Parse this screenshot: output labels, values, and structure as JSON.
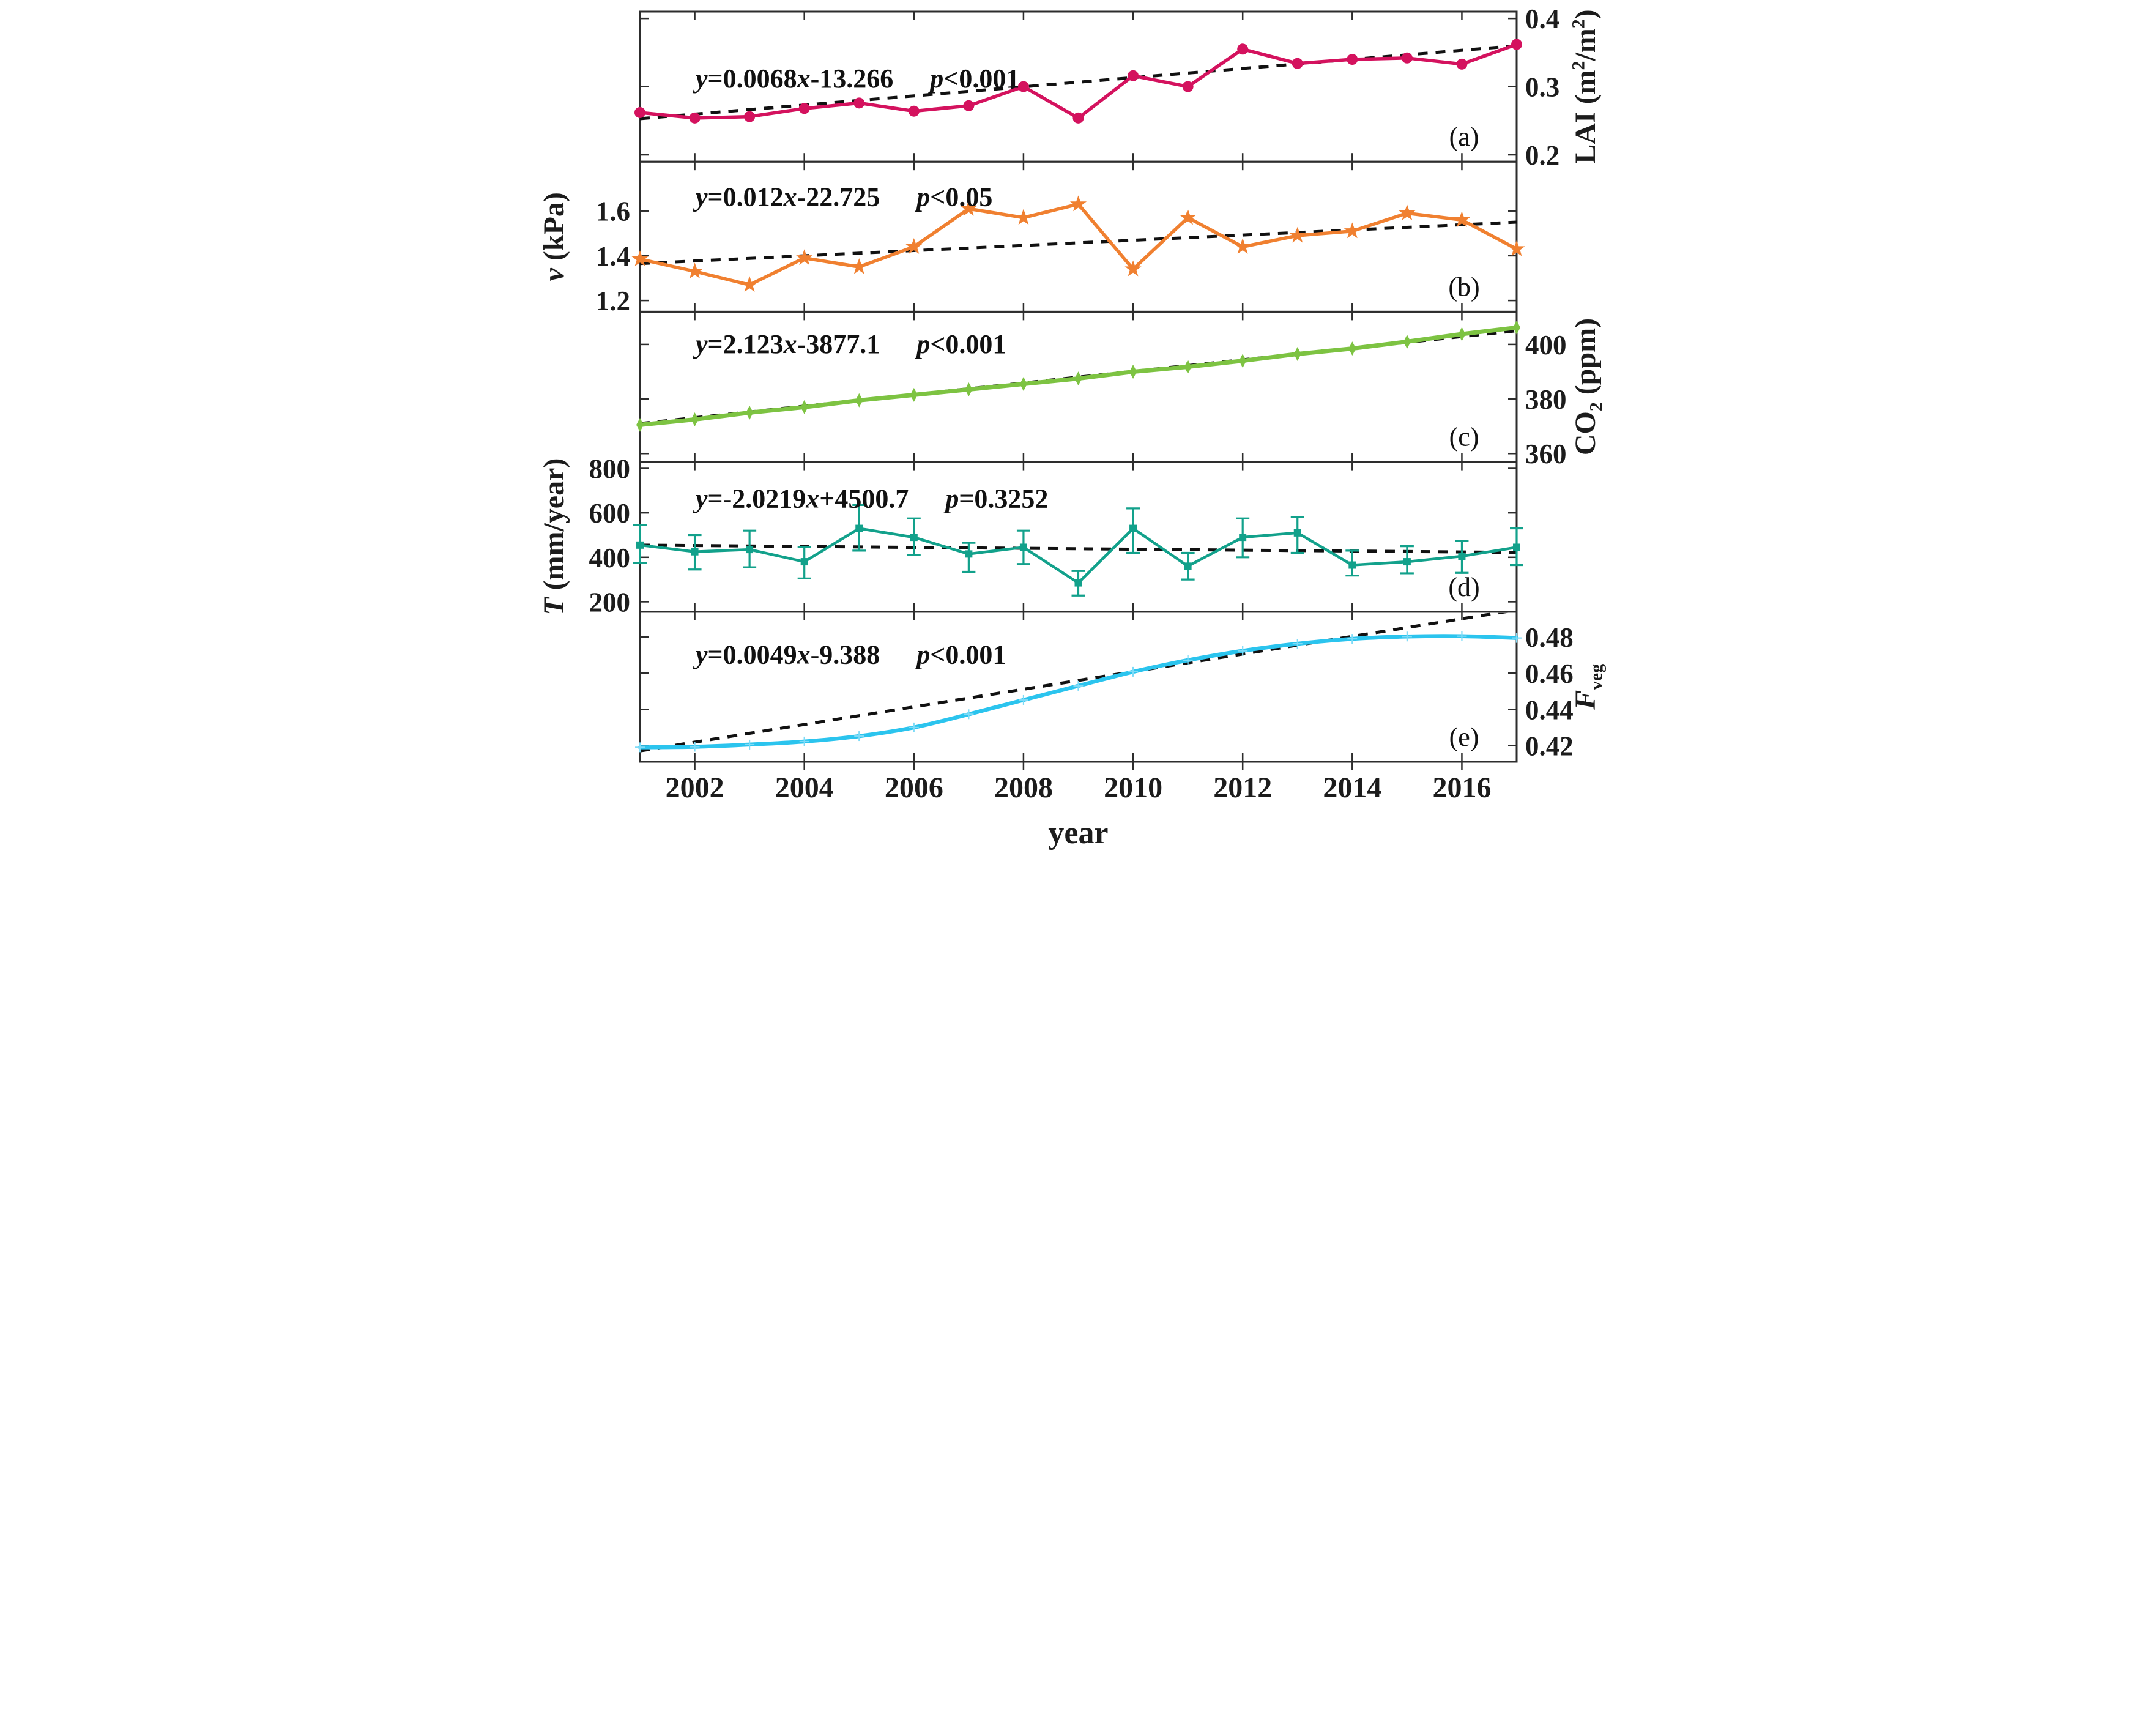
{
  "figure": {
    "years": [
      2001,
      2002,
      2003,
      2004,
      2005,
      2006,
      2007,
      2008,
      2009,
      2010,
      2011,
      2012,
      2013,
      2014,
      2015,
      2016,
      2017
    ],
    "x_range": [
      2001,
      2017
    ],
    "x_axis": {
      "title": "year",
      "tick_years": [
        2002,
        2004,
        2006,
        2008,
        2010,
        2012,
        2014,
        2016
      ],
      "tick_labels": [
        "2002",
        "2004",
        "2006",
        "2008",
        "2010",
        "2012",
        "2014",
        "2016"
      ]
    },
    "styles": {
      "trend_color": "#111111",
      "frame_color": "#2d2d2d",
      "text_color": "#1c1c1c",
      "background": "#ffffff"
    }
  },
  "chart_data": [
    {
      "id": "a",
      "type": "line",
      "panel_label": "(a)",
      "marker": "circle",
      "color": "#d4125e",
      "axis_side": "right",
      "axis_label_parts": [
        {
          "t": "LAI (m"
        },
        {
          "t": "2",
          "sup": true
        },
        {
          "t": "/m"
        },
        {
          "t": "2",
          "sup": true
        },
        {
          "t": ")"
        }
      ],
      "ylim": [
        0.19,
        0.41
      ],
      "yticks": [
        0.2,
        0.3,
        0.4
      ],
      "ytick_labels": [
        "0.2",
        "0.3",
        "0.4"
      ],
      "values": [
        0.262,
        0.254,
        0.256,
        0.268,
        0.276,
        0.264,
        0.272,
        0.3,
        0.254,
        0.316,
        0.3,
        0.355,
        0.334,
        0.34,
        0.342,
        0.333,
        0.362
      ],
      "trend": {
        "start": 0.253,
        "end": 0.36,
        "style": "dashed"
      },
      "equation_parts": [
        {
          "t": "y",
          "i": true
        },
        {
          "t": "=0.0068"
        },
        {
          "t": "x",
          "i": true
        },
        {
          "t": "-13.266"
        }
      ],
      "p_parts": [
        {
          "t": "p",
          "i": true
        },
        {
          "t": "<0.001"
        }
      ]
    },
    {
      "id": "b",
      "type": "line",
      "panel_label": "(b)",
      "marker": "star",
      "color": "#f08030",
      "axis_side": "left",
      "axis_label_parts": [
        {
          "t": "v",
          "i": true
        },
        {
          "t": " (kPa)"
        }
      ],
      "ylim": [
        1.15,
        1.82
      ],
      "yticks": [
        1.2,
        1.4,
        1.6
      ],
      "ytick_labels": [
        "1.2",
        "1.4",
        "1.6"
      ],
      "values": [
        1.385,
        1.33,
        1.27,
        1.39,
        1.35,
        1.44,
        1.61,
        1.57,
        1.63,
        1.34,
        1.57,
        1.44,
        1.49,
        1.51,
        1.59,
        1.56,
        1.43
      ],
      "trend": {
        "start": 1.365,
        "end": 1.55,
        "style": "dashed"
      },
      "equation_parts": [
        {
          "t": "y",
          "i": true
        },
        {
          "t": "=0.012"
        },
        {
          "t": "x",
          "i": true
        },
        {
          "t": "-22.725"
        }
      ],
      "p_parts": [
        {
          "t": "p",
          "i": true
        },
        {
          "t": "<0.05"
        }
      ]
    },
    {
      "id": "c",
      "type": "line",
      "panel_label": "(c)",
      "marker": "diamond",
      "color": "#7dc342",
      "axis_side": "right",
      "axis_label_parts": [
        {
          "t": "CO"
        },
        {
          "t": "2",
          "sub": true
        },
        {
          "t": " (ppm)"
        }
      ],
      "ylim": [
        357,
        412
      ],
      "yticks": [
        360,
        380,
        400
      ],
      "ytick_labels": [
        "360",
        "380",
        "400"
      ],
      "values": [
        370.5,
        372.5,
        375.0,
        377.0,
        379.5,
        381.5,
        383.5,
        385.5,
        387.5,
        390.0,
        391.8,
        394.0,
        396.5,
        398.5,
        401.0,
        403.8,
        406.2
      ],
      "trend": {
        "start": 371.0,
        "end": 405.0,
        "style": "dashed"
      },
      "equation_parts": [
        {
          "t": "y",
          "i": true
        },
        {
          "t": "=2.123"
        },
        {
          "t": "x",
          "i": true
        },
        {
          "t": "-3877.1"
        }
      ],
      "p_parts": [
        {
          "t": "p",
          "i": true
        },
        {
          "t": "<0.001"
        }
      ]
    },
    {
      "id": "d",
      "type": "line-errorbar",
      "panel_label": "(d)",
      "marker": "square",
      "color": "#12a18b",
      "axis_side": "left",
      "axis_label_parts": [
        {
          "t": "T",
          "i": true
        },
        {
          "t": " (mm/year)"
        }
      ],
      "ylim": [
        155,
        830
      ],
      "yticks": [
        200,
        400,
        600,
        800
      ],
      "ytick_labels": [
        "200",
        "400",
        "600",
        "800"
      ],
      "values": [
        455,
        425,
        435,
        380,
        530,
        490,
        415,
        445,
        285,
        530,
        360,
        490,
        510,
        365,
        380,
        405,
        445
      ],
      "error_low": [
        375,
        345,
        355,
        305,
        430,
        410,
        335,
        370,
        228,
        420,
        300,
        400,
        420,
        318,
        328,
        330,
        365
      ],
      "error_high": [
        545,
        500,
        520,
        445,
        635,
        575,
        465,
        520,
        338,
        620,
        420,
        575,
        580,
        430,
        450,
        475,
        530
      ],
      "trend": {
        "start": 455,
        "end": 422,
        "style": "dashed"
      },
      "equation_parts": [
        {
          "t": "y",
          "i": true
        },
        {
          "t": "=-2.0219"
        },
        {
          "t": "x",
          "i": true
        },
        {
          "t": "+4500.7"
        }
      ],
      "p_parts": [
        {
          "t": "p",
          "i": true
        },
        {
          "t": "=0.3252"
        }
      ]
    },
    {
      "id": "e",
      "type": "line",
      "panel_label": "(e)",
      "marker": "plus",
      "smooth": true,
      "color": "#2bc4ee",
      "marker_color": "#7edbf7",
      "axis_side": "right",
      "axis_label_parts": [
        {
          "t": "F",
          "i": true
        },
        {
          "t": "veg",
          "sub": true
        }
      ],
      "ylim": [
        0.411,
        0.494
      ],
      "yticks": [
        0.42,
        0.44,
        0.46,
        0.48
      ],
      "ytick_labels": [
        "0.42",
        "0.44",
        "0.46",
        "0.48"
      ],
      "values": [
        0.419,
        0.4193,
        0.4205,
        0.4222,
        0.4252,
        0.43,
        0.4373,
        0.4452,
        0.453,
        0.4608,
        0.4672,
        0.4724,
        0.4763,
        0.479,
        0.4803,
        0.4805,
        0.4795
      ],
      "trend": {
        "start": 0.417,
        "end": 0.495,
        "style": "dashed"
      },
      "equation_parts": [
        {
          "t": "y",
          "i": true
        },
        {
          "t": "=0.0049"
        },
        {
          "t": "x",
          "i": true
        },
        {
          "t": "-9.388"
        }
      ],
      "p_parts": [
        {
          "t": "p",
          "i": true
        },
        {
          "t": "<0.001"
        }
      ]
    }
  ]
}
